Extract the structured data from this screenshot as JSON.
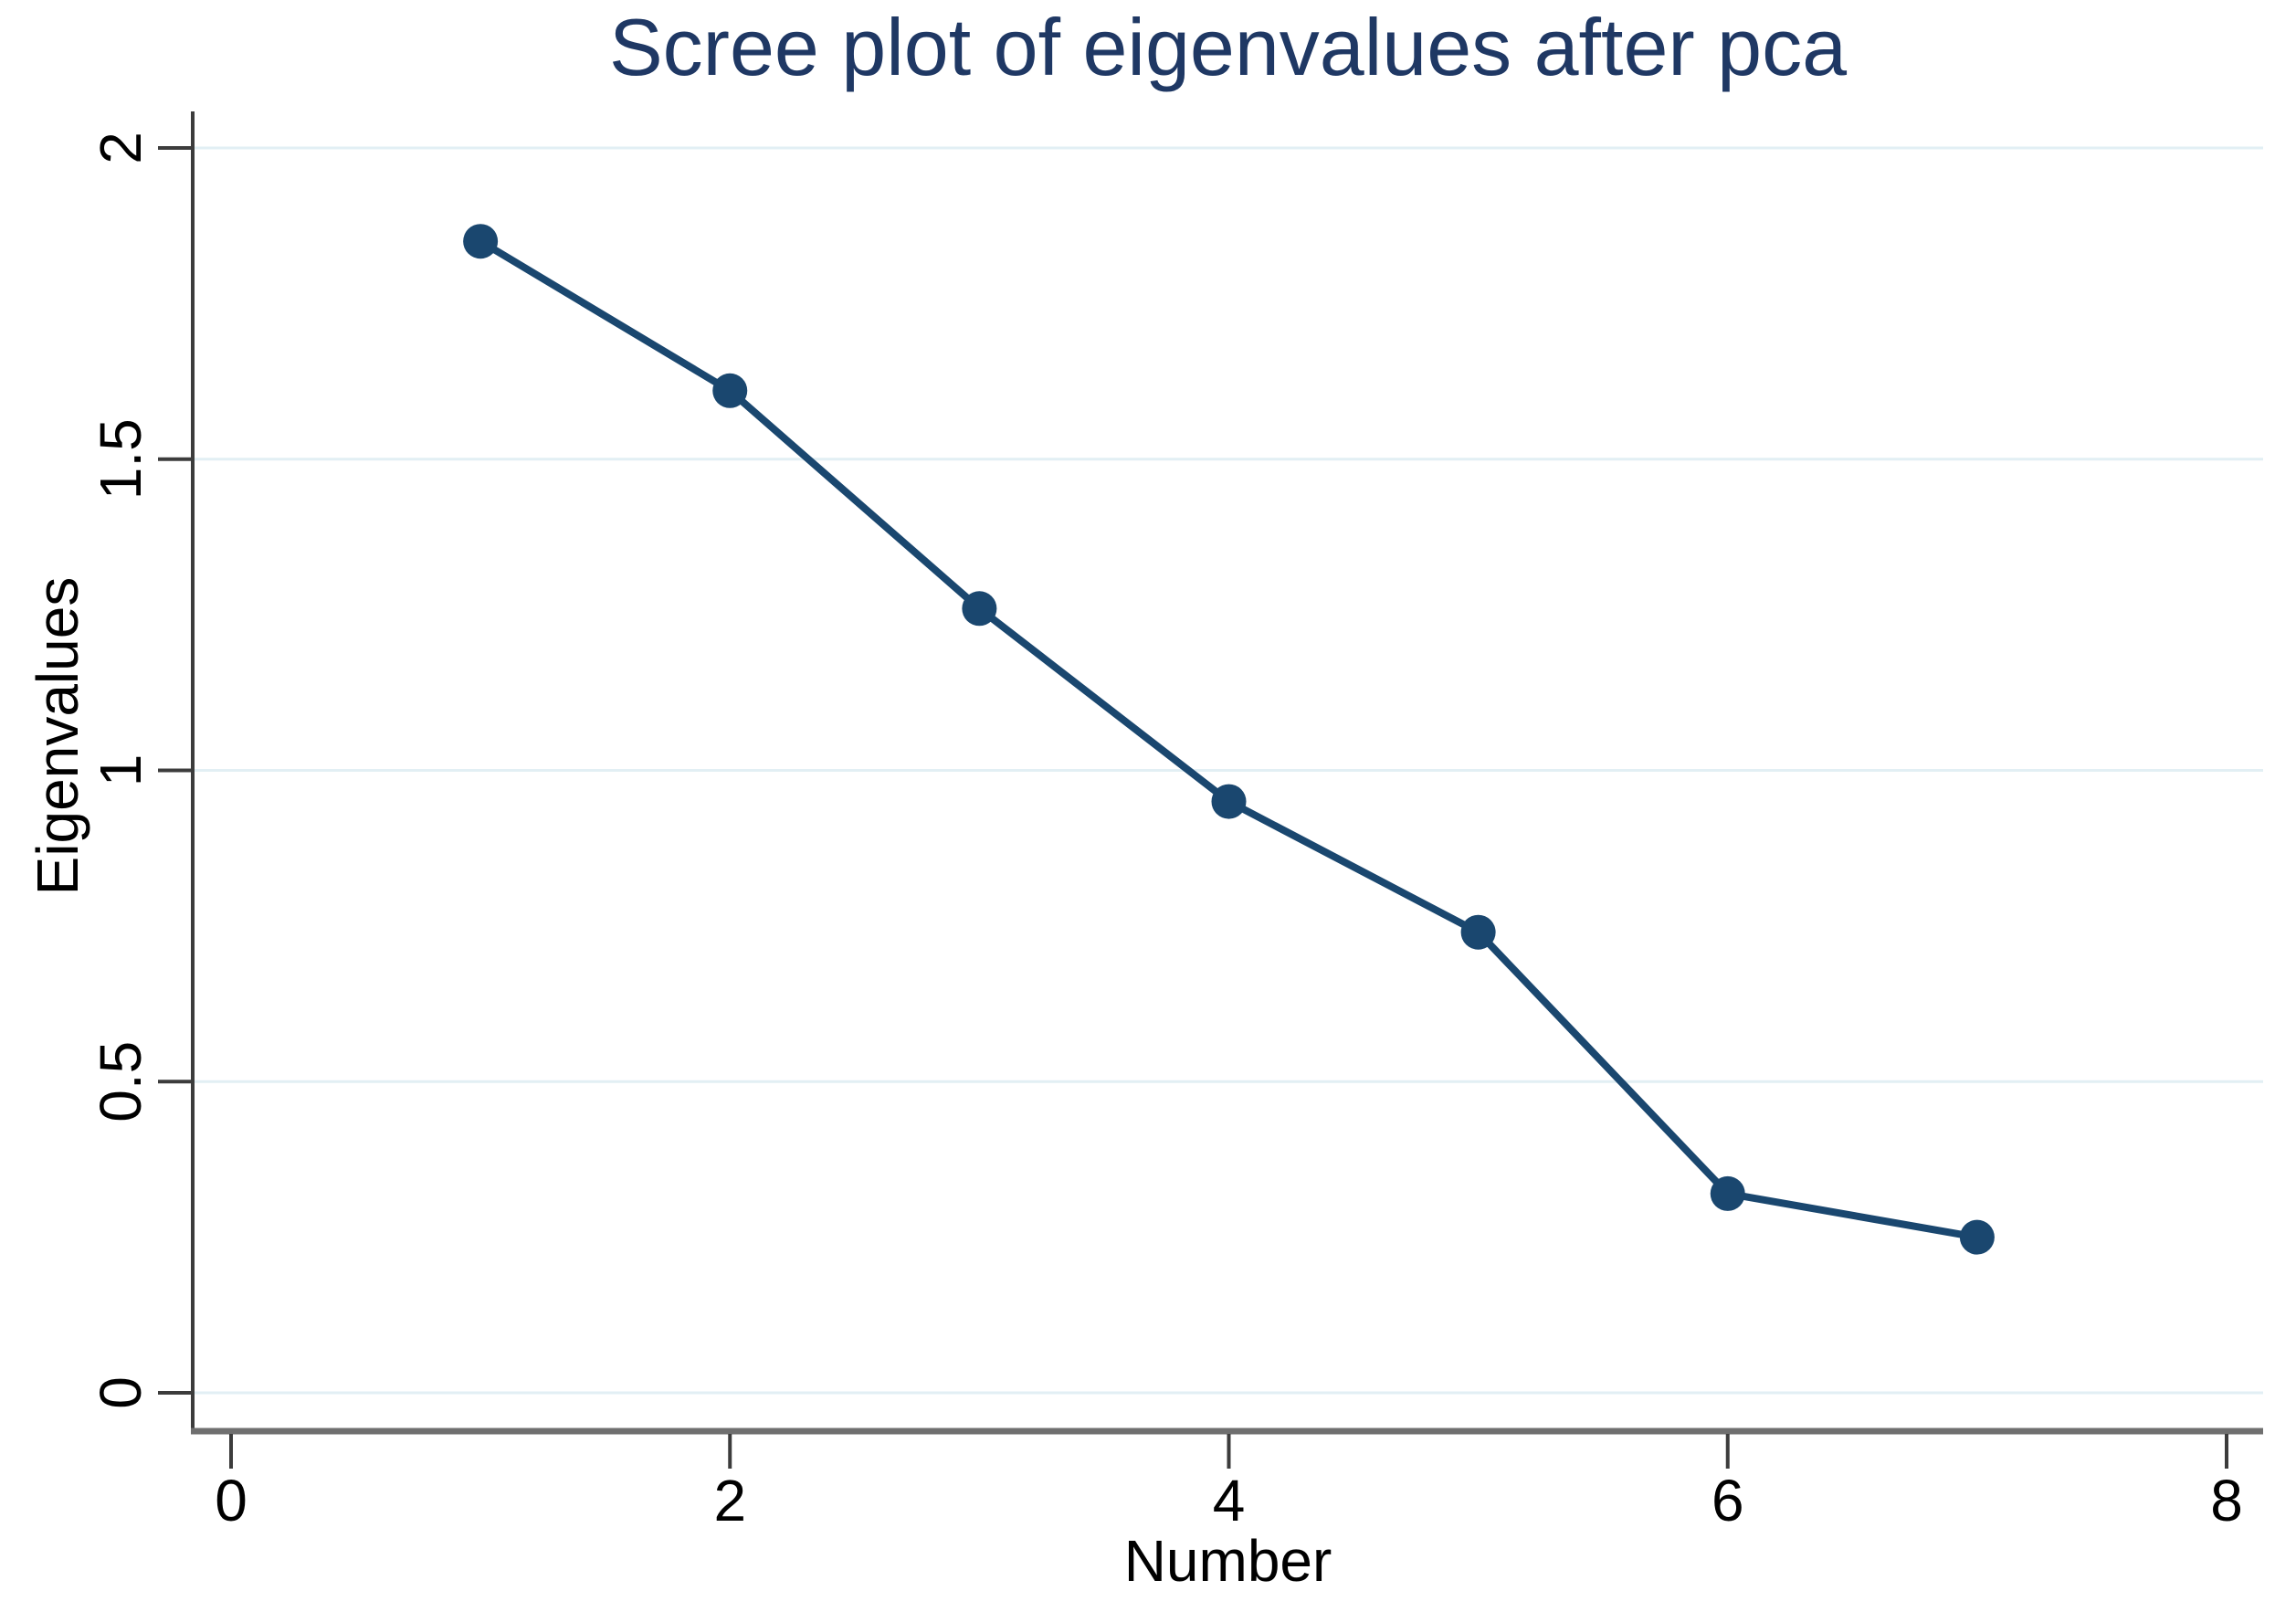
{
  "chart_data": {
    "type": "line",
    "title": "Scree plot of eigenvalues after pca",
    "xlabel": "Number",
    "ylabel": "Eigenvalues",
    "series": [
      {
        "name": "Eigenvalues",
        "x": [
          1,
          2,
          3,
          4,
          5,
          6,
          7
        ],
        "values": [
          1.85,
          1.61,
          1.26,
          0.95,
          0.74,
          0.32,
          0.25
        ]
      }
    ],
    "xlim": [
      0,
      8
    ],
    "ylim": [
      0,
      2
    ],
    "x_ticks": [
      0,
      2,
      4,
      6,
      8
    ],
    "x_tick_labels": [
      "0",
      "2",
      "4",
      "6",
      "8"
    ],
    "y_ticks": [
      0,
      0.5,
      1,
      1.5,
      2
    ],
    "y_tick_labels": [
      "0",
      "0.5",
      "1",
      "1.5",
      "2"
    ],
    "grid": true,
    "legend": "none",
    "colors": {
      "series": "#1a476f",
      "title": "#1f3864",
      "grid": "#e2eff4",
      "y_axis_line": "#3c3c3c",
      "x_axis_line": "#6f6f6f",
      "tick_mark": "#3c3c3c",
      "tick_text": "#000000",
      "background": "#ffffff"
    }
  }
}
